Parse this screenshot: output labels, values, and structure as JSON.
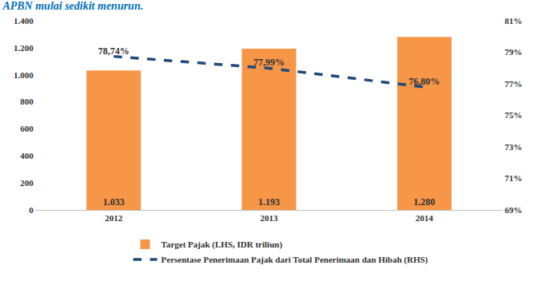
{
  "chart_data": {
    "type": "bar",
    "title": "APBN mulai sedikit menurun.",
    "categories": [
      "2012",
      "2013",
      "2014"
    ],
    "series": [
      {
        "name": "Target Pajak (LHS, IDR triliun)",
        "type": "bar",
        "color": "#f79646",
        "values": [
          1033,
          1193,
          1280
        ],
        "value_labels": [
          "1.033",
          "1.193",
          "1.280"
        ]
      },
      {
        "name": "Persentase Penerimaan Pajak dari Total Penerimaan dan Hibah (RHS)",
        "type": "line",
        "color": "#1f497d",
        "line_style": "dash",
        "axis": "y2",
        "values": [
          78.74,
          77.99,
          76.8
        ],
        "value_labels": [
          "78,74%",
          "77,99%",
          "76,80%"
        ]
      }
    ],
    "ylim": [
      0,
      1400
    ],
    "yticks": [
      0,
      200,
      400,
      600,
      800,
      {
        "value": 1000,
        "label": "1.000"
      },
      {
        "value": 1200,
        "label": "1.200"
      },
      {
        "value": 1400,
        "label": "1.400"
      }
    ],
    "y2lim": [
      69,
      81
    ],
    "y2ticks": [
      {
        "value": 69,
        "label": "69%"
      },
      {
        "value": 71,
        "label": "71%"
      },
      {
        "value": 73,
        "label": "73%"
      },
      {
        "value": 75,
        "label": "75%"
      },
      {
        "value": 77,
        "label": "77%"
      },
      {
        "value": 79,
        "label": "79%"
      },
      {
        "value": 81,
        "label": "81%"
      }
    ],
    "grid": false,
    "legend": "bottom",
    "data_labels": true
  }
}
